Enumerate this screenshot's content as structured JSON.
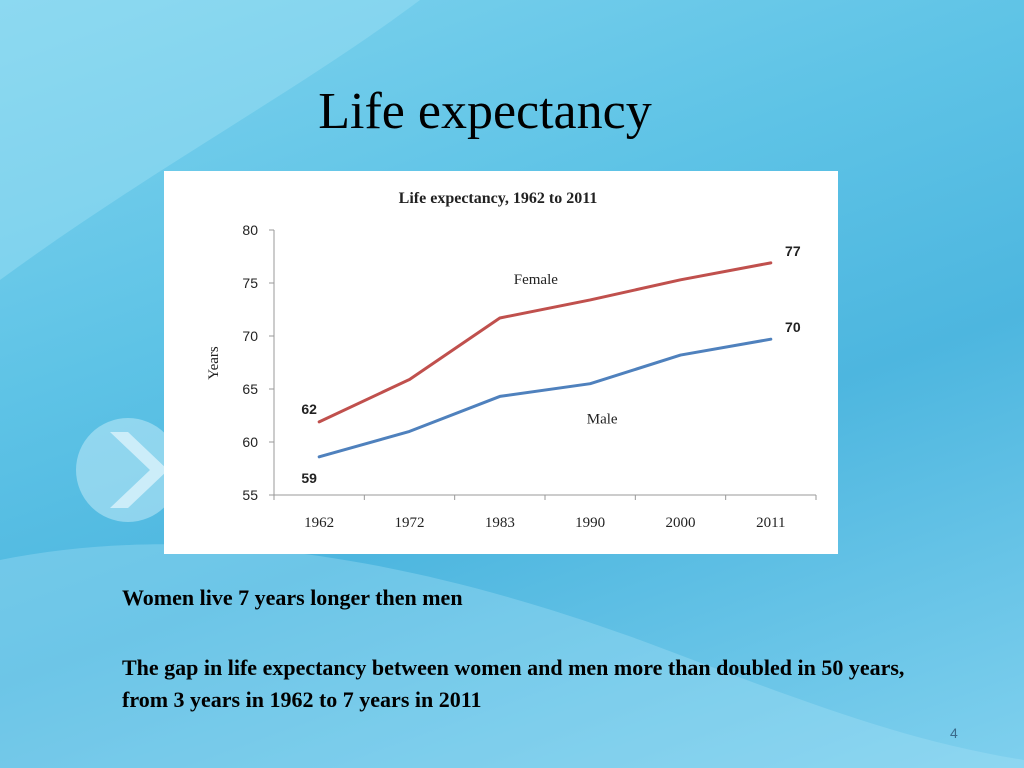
{
  "slide": {
    "title": "Life expectancy",
    "bullet1": "Women live 7 years longer then men",
    "bullet2": "The gap in life expectancy between women and men more than doubled in 50 years, from 3 years in 1962 to 7 years in 2011",
    "page_number": "4"
  },
  "chart_data": {
    "type": "line",
    "title": "Life expectancy, 1962 to 2011",
    "xlabel": "",
    "ylabel": "Years",
    "categories": [
      "1962",
      "1972",
      "1983",
      "1990",
      "2000",
      "2011"
    ],
    "ylim": [
      55,
      80
    ],
    "yticks": [
      55,
      60,
      65,
      70,
      75,
      80
    ],
    "series": [
      {
        "name": "Female",
        "color": "#c0504d",
        "values": [
          61.9,
          65.9,
          71.7,
          73.4,
          75.3,
          76.9
        ],
        "start_label": "62",
        "end_label": "77"
      },
      {
        "name": "Male",
        "color": "#4f81bd",
        "values": [
          58.6,
          61.0,
          64.3,
          65.5,
          68.2,
          69.7
        ],
        "start_label": "59",
        "end_label": "70"
      }
    ],
    "grid": false,
    "legend": "inline labels"
  }
}
